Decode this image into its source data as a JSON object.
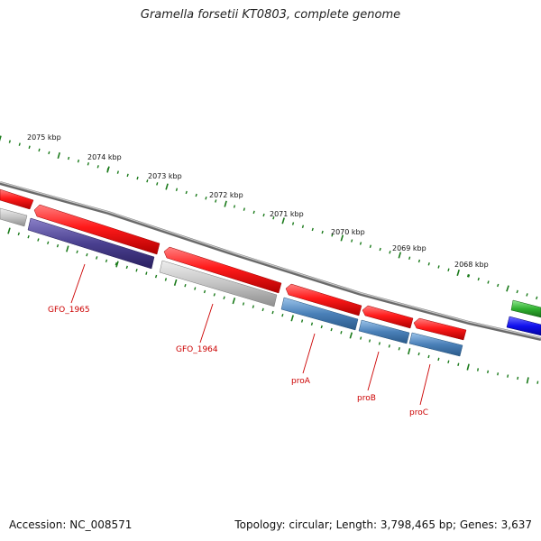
{
  "title": "Gramella forsetii KT0803, complete genome",
  "footer": {
    "accession": "Accession: NC_008571",
    "summary": "Topology: circular; Length: 3,798,465 bp; Genes: 3,637"
  },
  "colors": {
    "forward_gene": "#ff1a1a",
    "tick": "#1a7a1a",
    "backbone": "#8a8a8a",
    "label": "#cc0000",
    "reverse_default": "#c0c0c0",
    "reverse_purple": "#4a4090",
    "reverse_steelblue": "#4a80b8",
    "edge_green": "#30b030",
    "edge_blue": "#1010ee"
  },
  "scale_labels": [
    "2075 kbp",
    "2074 kbp",
    "2073 kbp",
    "2072 kbp",
    "2071 kbp",
    "2070 kbp",
    "2069 kbp",
    "2068 kbp"
  ],
  "gene_labels": [
    "GFO_1965",
    "GFO_1964",
    "proA",
    "proB",
    "proC"
  ]
}
